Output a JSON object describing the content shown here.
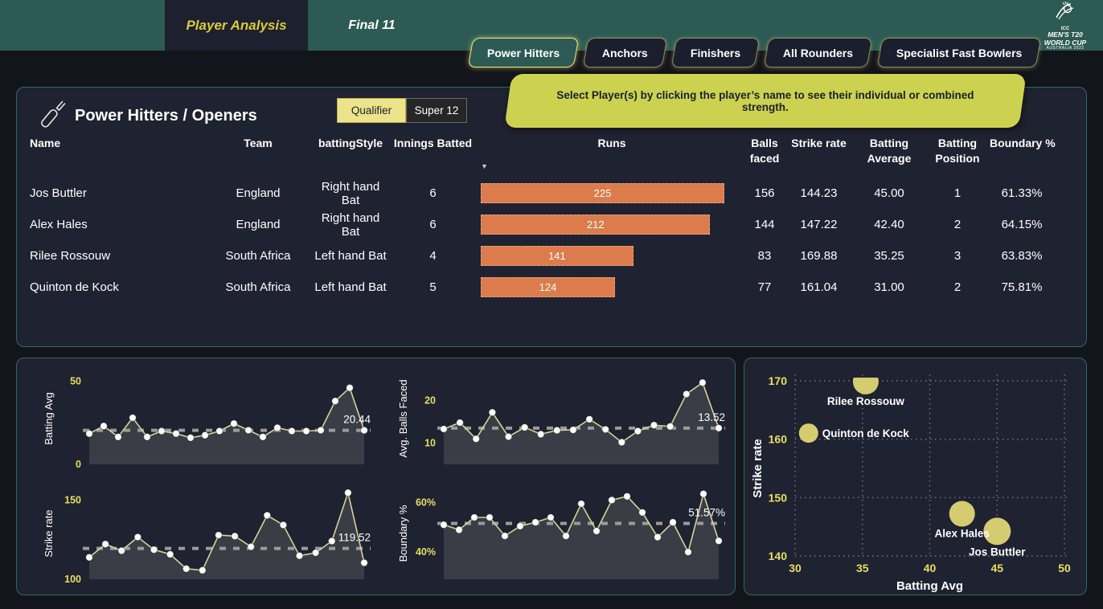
{
  "topbar": {
    "tabs": [
      {
        "label": "Player Analysis",
        "active": true
      },
      {
        "label": "Final 11",
        "active": false
      }
    ],
    "logo_lines": [
      "ICC",
      "MEN'S T20",
      "WORLD CUP",
      "AUSTRALIA 2022"
    ]
  },
  "filters": {
    "buttons": [
      {
        "label": "Power Hitters",
        "selected": true
      },
      {
        "label": "Anchors",
        "selected": false
      },
      {
        "label": "Finishers",
        "selected": false
      },
      {
        "label": "All Rounders",
        "selected": false
      },
      {
        "label": "Specialist Fast Bowlers",
        "selected": false
      }
    ]
  },
  "callout": {
    "text": "Select Player(s) by clicking the player’s name to see their individual or combined strength."
  },
  "panel": {
    "title": "Power Hitters / Openers",
    "toggle": [
      {
        "label": "Qualifier",
        "selected": true
      },
      {
        "label": "Super 12",
        "selected": false
      }
    ],
    "table": {
      "headers": {
        "name": "Name",
        "team": "Team",
        "batting_style": "battingStyle",
        "innings": "Innings Batted",
        "runs": "Runs",
        "balls": "Balls faced",
        "strike_rate": "Strike rate",
        "batting_average": "Batting Average",
        "batting_position": "Batting Position",
        "boundary_pct": "Boundary %"
      },
      "sort": {
        "column": "Runs",
        "direction": "descending",
        "glyph": "▼"
      },
      "runs_max": 225,
      "rows": [
        {
          "name": "Jos Buttler",
          "team": "England",
          "batting_style": "Right hand Bat",
          "innings": "6",
          "runs": 225,
          "balls": "156",
          "strike_rate": "144.23",
          "batting_average": "45.00",
          "batting_position": "1",
          "boundary_pct": "61.33%"
        },
        {
          "name": "Alex Hales",
          "team": "England",
          "batting_style": "Right hand Bat",
          "innings": "6",
          "runs": 212,
          "balls": "144",
          "strike_rate": "147.22",
          "batting_average": "42.40",
          "batting_position": "2",
          "boundary_pct": "64.15%"
        },
        {
          "name": "Rilee Rossouw",
          "team": "South Africa",
          "batting_style": "Left hand Bat",
          "innings": "4",
          "runs": 141,
          "balls": "83",
          "strike_rate": "169.88",
          "batting_average": "35.25",
          "batting_position": "3",
          "boundary_pct": "63.83%"
        },
        {
          "name": "Quinton de Kock",
          "team": "South Africa",
          "batting_style": "Left hand Bat",
          "innings": "5",
          "runs": 124,
          "balls": "77",
          "strike_rate": "161.04",
          "batting_average": "31.00",
          "batting_position": "2",
          "boundary_pct": "75.81%"
        }
      ]
    }
  },
  "chart_data": [
    {
      "id": "batting-avg-trend",
      "type": "line",
      "ylabel": "Batting Avg",
      "ticks": [
        {
          "value": 50,
          "label": "50"
        },
        {
          "value": 0,
          "label": "0"
        }
      ],
      "domain": [
        0,
        55
      ],
      "average": 20.44,
      "average_label": "20.44",
      "values": [
        18.5,
        23,
        16.5,
        28,
        16.5,
        20,
        18.5,
        16,
        17.5,
        20,
        24.5,
        20.5,
        16.5,
        22,
        20,
        20,
        20.5,
        38,
        46,
        20.44
      ]
    },
    {
      "id": "balls-faced-trend",
      "type": "line",
      "ylabel": "Avg. Balls Faced",
      "ticks": [
        {
          "value": 20,
          "label": "20"
        },
        {
          "value": 10,
          "label": "10"
        }
      ],
      "domain": [
        5,
        26.5
      ],
      "average": 13.52,
      "average_label": "13.52",
      "values": [
        13.3,
        14.8,
        11,
        17.2,
        11.5,
        13.7,
        12.1,
        13,
        13.1,
        15.6,
        13.2,
        10.2,
        12.8,
        14.2,
        13.9,
        21.5,
        24.2,
        13.52
      ]
    },
    {
      "id": "strike-rate-trend",
      "type": "line",
      "ylabel": "Strike rate",
      "ticks": [
        {
          "value": 150,
          "label": "150"
        },
        {
          "value": 100,
          "label": "100"
        }
      ],
      "domain": [
        100,
        158
      ],
      "average": 119.52,
      "average_label": "119.52",
      "values": [
        113.9,
        122.3,
        118.1,
        126.7,
        118.7,
        115.8,
        106.7,
        105.7,
        128,
        127.3,
        120.6,
        140.5,
        134.4,
        114.9,
        116.8,
        124.2,
        154.8,
        110.5
      ]
    },
    {
      "id": "boundary-pct-trend",
      "type": "line",
      "ylabel": "Boundary %",
      "ticks": [
        {
          "value": 60,
          "label": "60%"
        },
        {
          "value": 40,
          "label": "40%"
        }
      ],
      "domain": [
        29,
        66
      ],
      "average": 51.57,
      "average_label": "51.57%",
      "values": [
        51,
        49,
        54,
        54,
        46.5,
        50.5,
        52,
        54,
        46.5,
        59.5,
        48.5,
        61,
        62.5,
        56,
        46,
        52,
        40,
        63.5,
        44.5
      ]
    },
    {
      "id": "strike-rate-vs-batting-avg",
      "type": "scatter",
      "xlabel": "Batting Avg",
      "ylabel": "Strike rate",
      "xlim": [
        30,
        50
      ],
      "ylim": [
        140,
        170
      ],
      "xticks": [
        30,
        35,
        40,
        45,
        50
      ],
      "yticks": [
        140,
        150,
        160,
        170
      ],
      "points": [
        {
          "name": "Jos Buttler",
          "x": 45.0,
          "y": 144.23,
          "r": 17,
          "label_pos": "below"
        },
        {
          "name": "Alex Hales",
          "x": 42.4,
          "y": 147.22,
          "r": 16,
          "label_pos": "below"
        },
        {
          "name": "Rilee Rossouw",
          "x": 35.25,
          "y": 169.88,
          "r": 16,
          "label_pos": "below"
        },
        {
          "name": "Quinton de Kock",
          "x": 31.0,
          "y": 161.04,
          "r": 12,
          "label_pos": "right"
        }
      ]
    }
  ],
  "colors": {
    "topbar_teal": "#2d5a54",
    "page_bg": "#13151c",
    "panel_bg": "#1f2230",
    "panel_border": "#2e6a5f",
    "accent_yellow": "#ccd24f",
    "tab_yellow": "#d9cc38",
    "bar_orange": "#dc7c4c",
    "bubble_khaki": "#d5cc72",
    "line_yellow": "#d9d298",
    "area_fill": "#3a3d46",
    "avg_line_gray": "#9b9b9b",
    "tick_yellow": "#e8df63"
  }
}
